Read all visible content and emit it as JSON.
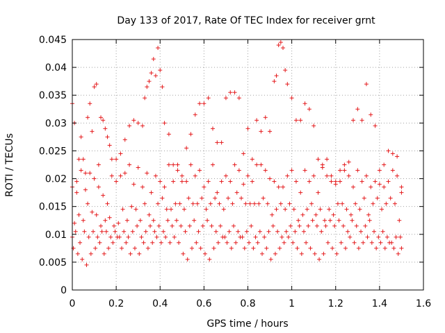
{
  "chart_data": {
    "type": "scatter",
    "title": "Day 133 of 2017, Rate Of TEC Index for receiver grnt",
    "xlabel": "GPS time / hours",
    "ylabel": "ROTI / TECUs",
    "xlim": [
      0,
      1.6
    ],
    "ylim": [
      0,
      0.045
    ],
    "x_ticks": [
      "0",
      "0.2",
      "0.4",
      "0.6",
      "0.8",
      "1",
      "1.2",
      "1.4",
      "1.6"
    ],
    "y_ticks": [
      "0",
      "0.005",
      "0.01",
      "0.015",
      "0.02",
      "0.025",
      "0.03",
      "0.035",
      "0.04",
      "0.045"
    ],
    "x_tick_values": [
      0,
      0.2,
      0.4,
      0.6,
      0.8,
      1.0,
      1.2,
      1.4,
      1.6
    ],
    "y_tick_values": [
      0,
      0.005,
      0.01,
      0.015,
      0.02,
      0.025,
      0.03,
      0.035,
      0.04,
      0.045
    ],
    "grid": true,
    "marker": "plus",
    "color": "#e41a1c",
    "series": [
      {
        "name": "ROTI",
        "x": [
          0.0,
          0.01,
          0.02,
          0.03,
          0.04,
          0.05,
          0.06,
          0.07,
          0.08,
          0.09,
          0.1,
          0.11,
          0.12,
          0.13,
          0.14,
          0.15,
          0.16,
          0.17,
          0.18,
          0.2,
          0.22,
          0.24,
          0.26,
          0.28,
          0.3,
          0.32,
          0.33,
          0.34,
          0.35,
          0.36,
          0.37,
          0.38,
          0.39,
          0.4,
          0.41,
          0.42,
          0.44,
          0.46,
          0.48,
          0.5,
          0.52,
          0.54,
          0.56,
          0.58,
          0.6,
          0.62,
          0.64,
          0.66,
          0.68,
          0.7,
          0.72,
          0.74,
          0.76,
          0.78,
          0.8,
          0.82,
          0.84,
          0.86,
          0.88,
          0.9,
          0.92,
          0.93,
          0.94,
          0.95,
          0.96,
          0.97,
          0.98,
          1.0,
          1.02,
          1.04,
          1.06,
          1.08,
          1.1,
          1.12,
          1.14,
          1.16,
          1.18,
          1.2,
          1.22,
          1.24,
          1.26,
          1.28,
          1.3,
          1.32,
          1.34,
          1.36,
          1.38,
          1.4,
          1.42,
          1.44,
          1.46,
          1.48,
          1.5,
          0.0,
          0.02,
          0.04,
          0.06,
          0.08,
          0.1,
          0.12,
          0.14,
          0.16,
          0.18,
          0.2,
          0.22,
          0.24,
          0.26,
          0.28,
          0.3,
          0.32,
          0.34,
          0.36,
          0.38,
          0.4,
          0.42,
          0.44,
          0.46,
          0.48,
          0.5,
          0.52,
          0.54,
          0.56,
          0.58,
          0.6,
          0.62,
          0.64,
          0.66,
          0.68,
          0.7,
          0.72,
          0.74,
          0.76,
          0.78,
          0.8,
          0.82,
          0.84,
          0.86,
          0.88,
          0.9,
          0.92,
          0.94,
          0.96,
          0.98,
          1.0,
          1.02,
          1.04,
          1.06,
          1.08,
          1.1,
          1.12,
          1.14,
          1.16,
          1.18,
          1.2,
          1.22,
          1.24,
          1.26,
          1.28,
          1.3,
          1.32,
          1.34,
          1.36,
          1.38,
          1.4,
          1.42,
          1.44,
          1.46,
          1.48,
          1.5,
          0.01,
          0.03,
          0.05,
          0.07,
          0.09,
          0.11,
          0.13,
          0.15,
          0.17,
          0.19,
          0.21,
          0.23,
          0.25,
          0.27,
          0.29,
          0.31,
          0.33,
          0.35,
          0.37,
          0.39,
          0.41,
          0.43,
          0.45,
          0.47,
          0.49,
          0.51,
          0.53,
          0.55,
          0.57,
          0.59,
          0.61,
          0.63,
          0.65,
          0.67,
          0.69,
          0.71,
          0.73,
          0.75,
          0.77,
          0.79,
          0.81,
          0.83,
          0.85,
          0.87,
          0.89,
          0.91,
          0.93,
          0.95,
          0.97,
          0.99,
          1.01,
          1.03,
          1.05,
          1.07,
          1.09,
          1.11,
          1.13,
          1.15,
          1.17,
          1.19,
          1.21,
          1.23,
          1.25,
          1.27,
          1.29,
          1.31,
          1.33,
          1.35,
          1.37,
          1.39,
          1.41,
          1.43,
          1.45,
          1.47,
          1.49,
          0.0,
          0.015,
          0.035,
          0.055,
          0.075,
          0.095,
          0.115,
          0.135,
          0.155,
          0.175,
          0.195,
          0.215,
          0.235,
          0.255,
          0.275,
          0.295,
          0.315,
          0.335,
          0.355,
          0.375,
          0.395,
          0.415,
          0.435,
          0.455,
          0.475,
          0.495,
          0.515,
          0.535,
          0.555,
          0.575,
          0.595,
          0.615,
          0.635,
          0.655,
          0.675,
          0.695,
          0.715,
          0.735,
          0.755,
          0.775,
          0.795,
          0.815,
          0.835,
          0.855,
          0.875,
          0.895,
          0.915,
          0.935,
          0.955,
          0.975,
          0.995,
          1.015,
          1.035,
          1.055,
          1.075,
          1.095,
          1.115,
          1.135,
          1.155,
          1.175,
          1.195,
          1.215,
          1.235,
          1.255,
          1.275,
          1.295,
          1.315,
          1.335,
          1.355,
          1.375,
          1.395,
          1.415,
          1.435,
          1.455,
          1.475,
          1.495,
          0.005,
          0.025,
          0.045,
          0.065,
          0.085,
          0.105,
          0.125,
          0.145,
          0.165,
          0.185,
          0.205,
          0.225,
          0.245,
          0.265,
          0.285,
          0.305,
          0.325,
          0.345,
          0.365,
          0.385,
          0.405,
          0.425,
          0.445,
          0.465,
          0.485,
          0.505,
          0.525,
          0.545,
          0.565,
          0.585,
          0.605,
          0.625,
          0.645,
          0.665,
          0.685,
          0.705,
          0.725,
          0.745,
          0.765,
          0.785,
          0.805,
          0.825,
          0.845,
          0.865,
          0.885,
          0.905,
          0.925,
          0.945,
          0.965,
          0.985,
          1.005,
          1.025,
          1.045,
          1.065,
          1.085,
          1.105,
          1.125,
          1.145,
          1.165,
          1.185,
          1.205,
          1.225,
          1.245,
          1.265,
          1.285,
          1.305,
          1.325,
          1.345,
          1.365,
          1.385,
          1.405,
          1.425,
          1.445,
          1.465,
          1.485,
          1.5
        ],
        "y": [
          0.0335,
          0.03,
          0.0195,
          0.0235,
          0.0275,
          0.0235,
          0.021,
          0.031,
          0.0335,
          0.0285,
          0.0365,
          0.037,
          0.0225,
          0.031,
          0.0305,
          0.029,
          0.0275,
          0.026,
          0.0235,
          0.0235,
          0.0245,
          0.027,
          0.0295,
          0.0305,
          0.03,
          0.0295,
          0.0345,
          0.0365,
          0.0375,
          0.039,
          0.0415,
          0.0385,
          0.0435,
          0.0395,
          0.0365,
          0.03,
          0.028,
          0.0225,
          0.0225,
          0.0195,
          0.0255,
          0.028,
          0.0315,
          0.0335,
          0.0335,
          0.0345,
          0.029,
          0.0265,
          0.0265,
          0.0345,
          0.0355,
          0.0355,
          0.0345,
          0.0245,
          0.029,
          0.0235,
          0.0305,
          0.0285,
          0.031,
          0.0285,
          0.0375,
          0.0385,
          0.044,
          0.0445,
          0.0435,
          0.0395,
          0.037,
          0.0345,
          0.0305,
          0.0305,
          0.0335,
          0.0325,
          0.0295,
          0.0235,
          0.0225,
          0.0235,
          0.0205,
          0.0195,
          0.0215,
          0.0225,
          0.023,
          0.0305,
          0.0325,
          0.0305,
          0.037,
          0.0315,
          0.0295,
          0.0215,
          0.0225,
          0.025,
          0.0245,
          0.024,
          0.0175,
          0.0185,
          0.0175,
          0.0215,
          0.018,
          0.021,
          0.02,
          0.0185,
          0.017,
          0.0155,
          0.0205,
          0.0195,
          0.0205,
          0.021,
          0.0225,
          0.019,
          0.022,
          0.0185,
          0.021,
          0.0175,
          0.0205,
          0.0195,
          0.0185,
          0.0225,
          0.0195,
          0.0215,
          0.0205,
          0.0195,
          0.0225,
          0.0205,
          0.0215,
          0.0185,
          0.0195,
          0.0225,
          0.0175,
          0.0195,
          0.0205,
          0.0195,
          0.0225,
          0.0215,
          0.019,
          0.0205,
          0.0195,
          0.0225,
          0.0225,
          0.0215,
          0.02,
          0.0195,
          0.0185,
          0.0185,
          0.0205,
          0.0215,
          0.0195,
          0.0175,
          0.0215,
          0.0195,
          0.0205,
          0.0175,
          0.022,
          0.0205,
          0.0195,
          0.019,
          0.0195,
          0.0215,
          0.0205,
          0.0185,
          0.0215,
          0.0195,
          0.0205,
          0.0185,
          0.0195,
          0.019,
          0.0185,
          0.0195,
          0.0215,
          0.0205,
          0.0185,
          0.012,
          0.0135,
          0.0125,
          0.0155,
          0.014,
          0.0135,
          0.0115,
          0.0125,
          0.013,
          0.0115,
          0.012,
          0.0145,
          0.0125,
          0.015,
          0.0145,
          0.0125,
          0.0155,
          0.0135,
          0.0125,
          0.0155,
          0.0165,
          0.0145,
          0.0145,
          0.0155,
          0.0155,
          0.0145,
          0.0165,
          0.0155,
          0.0155,
          0.0165,
          0.0145,
          0.0155,
          0.0165,
          0.0155,
          0.0145,
          0.0165,
          0.0155,
          0.0175,
          0.0165,
          0.0155,
          0.0155,
          0.0155,
          0.0155,
          0.0165,
          0.0155,
          0.0135,
          0.0145,
          0.0155,
          0.0145,
          0.0155,
          0.0145,
          0.0125,
          0.0135,
          0.0145,
          0.0155,
          0.0135,
          0.0145,
          0.0125,
          0.0145,
          0.0135,
          0.0155,
          0.0155,
          0.0145,
          0.0135,
          0.0155,
          0.0145,
          0.0165,
          0.0135,
          0.0155,
          0.0165,
          0.0145,
          0.0155,
          0.0165,
          0.0155,
          0.0125,
          0.0095,
          0.0105,
          0.0085,
          0.0105,
          0.0095,
          0.0105,
          0.0095,
          0.0105,
          0.0105,
          0.0095,
          0.0105,
          0.0095,
          0.0105,
          0.0095,
          0.0105,
          0.0115,
          0.0095,
          0.0105,
          0.0115,
          0.0105,
          0.0115,
          0.0105,
          0.0125,
          0.0115,
          0.0125,
          0.0115,
          0.0105,
          0.0115,
          0.0125,
          0.0105,
          0.0115,
          0.0125,
          0.0115,
          0.0105,
          0.0115,
          0.0095,
          0.0105,
          0.0115,
          0.0105,
          0.0095,
          0.0105,
          0.0115,
          0.0095,
          0.0105,
          0.0095,
          0.0105,
          0.0115,
          0.0105,
          0.0095,
          0.0105,
          0.0115,
          0.0105,
          0.0115,
          0.0105,
          0.0115,
          0.0125,
          0.0115,
          0.0105,
          0.0115,
          0.0125,
          0.0115,
          0.0125,
          0.0115,
          0.0105,
          0.0125,
          0.0115,
          0.0105,
          0.0115,
          0.0125,
          0.0105,
          0.0095,
          0.0105,
          0.0095,
          0.0085,
          0.0095,
          0.0095,
          0.0075,
          0.0065,
          0.0055,
          0.0045,
          0.0065,
          0.0075,
          0.0085,
          0.0065,
          0.0075,
          0.0085,
          0.0095,
          0.0075,
          0.0085,
          0.0065,
          0.0075,
          0.0065,
          0.0085,
          0.0075,
          0.0085,
          0.0095,
          0.0085,
          0.0095,
          0.0085,
          0.0095,
          0.0085,
          0.0065,
          0.0055,
          0.0075,
          0.0085,
          0.0075,
          0.0065,
          0.0055,
          0.0075,
          0.0085,
          0.0095,
          0.0085,
          0.0075,
          0.0085,
          0.0095,
          0.0075,
          0.0085,
          0.0075,
          0.0085,
          0.0065,
          0.0075,
          0.0055,
          0.0065,
          0.0075,
          0.0085,
          0.0095,
          0.0085,
          0.0075,
          0.0065,
          0.0085,
          0.0075,
          0.0065,
          0.0055,
          0.0065,
          0.0085,
          0.0075,
          0.0065,
          0.0085,
          0.0075,
          0.0095,
          0.0085,
          0.0075,
          0.0085,
          0.0095,
          0.0085,
          0.0075,
          0.0085,
          0.0075,
          0.0085,
          0.0075,
          0.0065,
          0.0075
        ]
      }
    ]
  }
}
